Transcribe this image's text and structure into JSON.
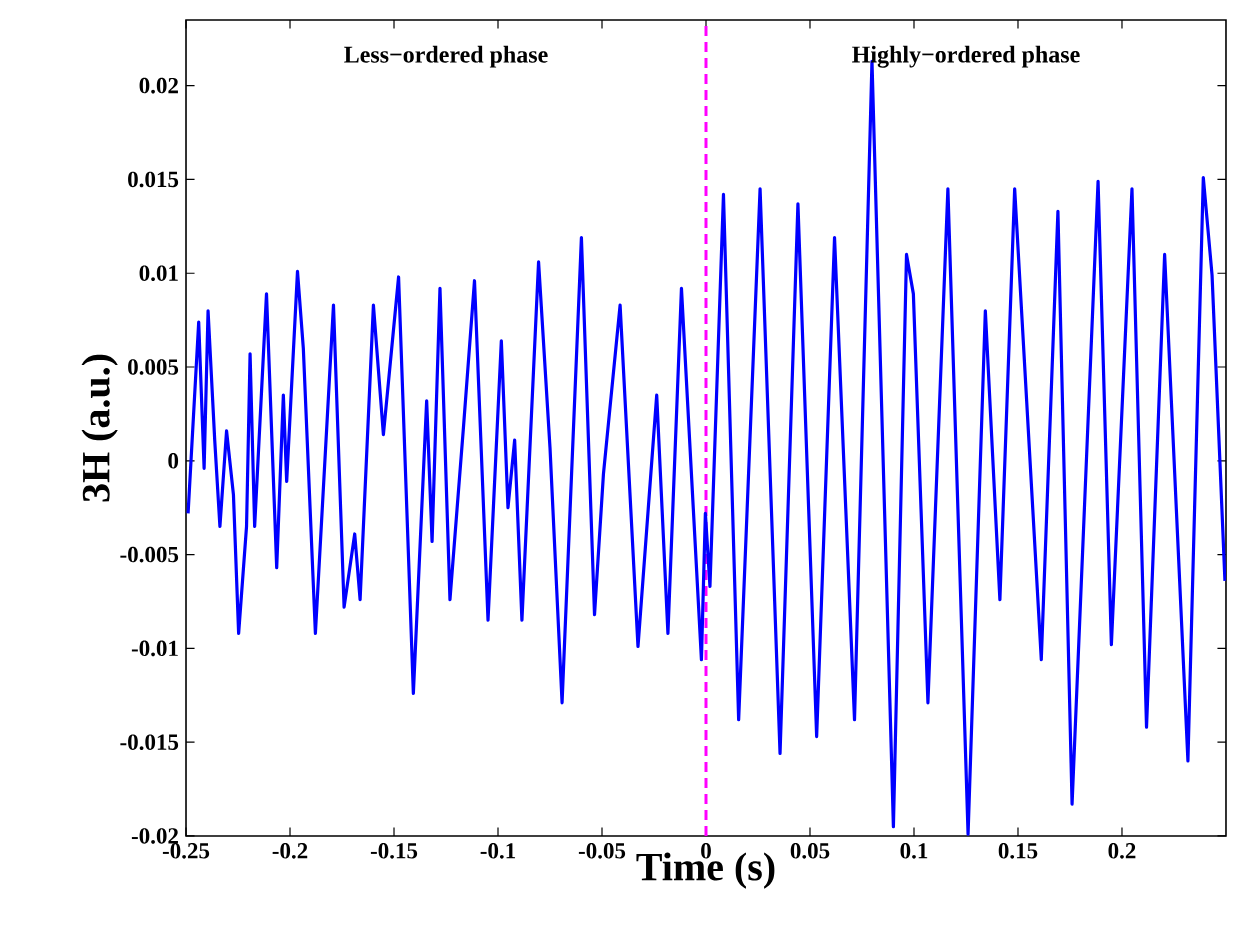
{
  "chart_data": {
    "type": "line",
    "xlabel": "Time (s)",
    "ylabel": "3H (a.u.)",
    "annotations": [
      "Less−ordered phase",
      "Highly−ordered phase"
    ],
    "xlim": [
      -0.25,
      0.25
    ],
    "ylim": [
      -0.02,
      0.0235
    ],
    "xticks": [
      -0.25,
      -0.2,
      -0.15,
      -0.1,
      -0.05,
      0,
      0.05,
      0.1,
      0.15,
      0.2
    ],
    "yticks": [
      -0.02,
      -0.015,
      -0.01,
      -0.005,
      0,
      0.005,
      0.01,
      0.015,
      0.02
    ],
    "ref_lines": [
      {
        "axis": "x",
        "value": 0,
        "color": "#ff00ff",
        "line_style": "dashed"
      }
    ],
    "series": [
      {
        "color": "#0000ff",
        "x": [
          -0.249,
          -0.2439,
          -0.2413,
          -0.2394,
          -0.2362,
          -0.2337,
          -0.2305,
          -0.2272,
          -0.2247,
          -0.2209,
          -0.2192,
          -0.217,
          -0.2113,
          -0.2064,
          -0.2032,
          -0.2016,
          -0.1964,
          -0.1936,
          -0.1878,
          -0.1791,
          -0.174,
          -0.1689,
          -0.1663,
          -0.1599,
          -0.1551,
          -0.1478,
          -0.1407,
          -0.1343,
          -0.1317,
          -0.1279,
          -0.1231,
          -0.1166,
          -0.1113,
          -0.1048,
          -0.0984,
          -0.0952,
          -0.092,
          -0.0885,
          -0.0805,
          -0.075,
          -0.0692,
          -0.0599,
          -0.0536,
          -0.0493,
          -0.0413,
          -0.0327,
          -0.0237,
          -0.0183,
          -0.0118,
          -0.0022,
          -0.0003,
          0.0019,
          0.0084,
          0.0157,
          0.026,
          0.0356,
          0.0442,
          0.0532,
          0.0618,
          0.0714,
          0.0798,
          0.0901,
          0.0964,
          0.0997,
          0.1067,
          0.1163,
          0.126,
          0.1343,
          0.1413,
          0.1484,
          0.1612,
          0.1692,
          0.176,
          0.1885,
          0.1949,
          0.2048,
          0.2118,
          0.2205,
          0.2317,
          0.2391,
          0.2433,
          0.2495
        ],
        "values": [
          -0.0028,
          0.0074,
          -0.0004,
          0.008,
          0.0011,
          -0.0035,
          0.0016,
          -0.0018,
          -0.0092,
          -0.0035,
          0.0057,
          -0.0035,
          0.0089,
          -0.0057,
          0.0035,
          -0.0011,
          0.0101,
          0.006,
          -0.0092,
          0.0083,
          -0.0078,
          -0.0039,
          -0.0074,
          0.0083,
          0.0014,
          0.0098,
          -0.0124,
          0.0032,
          -0.0043,
          0.0092,
          -0.0074,
          0.0018,
          0.0096,
          -0.0085,
          0.0064,
          -0.0025,
          0.0011,
          -0.0085,
          0.0106,
          0.0007,
          -0.0129,
          0.0119,
          -0.0082,
          -0.0007,
          0.0083,
          -0.0099,
          0.0035,
          -0.0092,
          0.0092,
          -0.0106,
          -0.0028,
          -0.0067,
          0.0142,
          -0.0138,
          0.0145,
          -0.0156,
          0.0137,
          -0.0147,
          0.0119,
          -0.0138,
          0.0213,
          -0.0195,
          0.011,
          0.0089,
          -0.0129,
          0.0145,
          -0.0199,
          0.008,
          -0.0074,
          0.0145,
          -0.0106,
          0.0133,
          -0.0183,
          0.0149,
          -0.0098,
          0.0145,
          -0.0142,
          0.011,
          -0.016,
          0.0151,
          0.0099,
          -0.0064
        ]
      }
    ]
  }
}
